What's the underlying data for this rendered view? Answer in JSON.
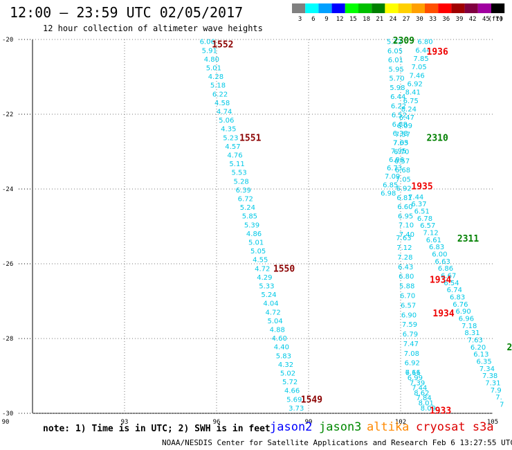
{
  "header": {
    "title": "12:00 – 23:59 UTC 02/05/2017",
    "subtitle": "12 hour collection of altimeter wave heights"
  },
  "legend": {
    "unit": "(ft)",
    "items": [
      {
        "label": "3",
        "color": "#808080"
      },
      {
        "label": "6",
        "color": "#00ffff"
      },
      {
        "label": "9",
        "color": "#00a0ff"
      },
      {
        "label": "12",
        "color": "#0000ff"
      },
      {
        "label": "15",
        "color": "#00ff00"
      },
      {
        "label": "18",
        "color": "#00c000"
      },
      {
        "label": "21",
        "color": "#008000"
      },
      {
        "label": "24",
        "color": "#ffff00"
      },
      {
        "label": "27",
        "color": "#ffd000"
      },
      {
        "label": "30",
        "color": "#ffa000"
      },
      {
        "label": "33",
        "color": "#ff5000"
      },
      {
        "label": "36",
        "color": "#ff0000"
      },
      {
        "label": "39",
        "color": "#a00000"
      },
      {
        "label": "42",
        "color": "#800040"
      },
      {
        "label": "45",
        "color": "#a000a0"
      },
      {
        "label": "70",
        "color": "#000000"
      }
    ]
  },
  "footer": {
    "note": "note: 1) Time is in UTC; 2) SWH is in feet",
    "satellites": [
      {
        "name": "jason2",
        "color": "#0000ff"
      },
      {
        "name": "jason3",
        "color": "#008800"
      },
      {
        "name": "altika",
        "color": "#ff8800"
      },
      {
        "name": "cryosat s3a",
        "color": "#dd0000"
      }
    ],
    "credit": "NOAA/NESDIS Center for Satellite Applications and Research   Feb  6 13:27:55 UTC 2017"
  },
  "chart_data": {
    "type": "scatter",
    "xlim": [
      90,
      105
    ],
    "ylim": [
      -30,
      -20
    ],
    "x_ticks": [
      "90",
      "93",
      "96",
      "99",
      "102",
      "105"
    ],
    "y_ticks": [
      "-20",
      "-22",
      "-24",
      "-26",
      "-28",
      "-30"
    ],
    "grid": true,
    "point_color": "#00c8e6",
    "tracks": [
      {
        "name": "track-a",
        "start": [
          95.7,
          -20.05
        ],
        "end": [
          98.6,
          -29.85
        ],
        "values": [
          "6.06",
          "5.91",
          "4.80",
          "5.01",
          "4.28",
          "5.18",
          "6.22",
          "4.58",
          "4.74",
          "5.06",
          "4.35",
          "5.23",
          "4.57",
          "4.76",
          "5.11",
          "5.53",
          "5.28",
          "6.39",
          "6.72",
          "5.24",
          "5.85",
          "5.39",
          "4.86",
          "5.01",
          "5.05",
          "4.55",
          "4.72",
          "4.29",
          "5.33",
          "5.24",
          "4.04",
          "4.72",
          "5.04",
          "4.88",
          "4.60",
          "4.40",
          "5.83",
          "4.32",
          "5.02",
          "5.72",
          "4.66",
          "5.69",
          "3.73"
        ]
      },
      {
        "name": "track-b",
        "start": [
          101.8,
          -20.05
        ],
        "end": [
          102.2,
          -25.2
        ],
        "values": [
          "5.72",
          "6.05",
          "6.01",
          "5.95",
          "5.70",
          "5.98",
          "6.44",
          "6.22",
          "6.52",
          "6.88",
          "6.38",
          "7.05",
          "6.70",
          "6.57",
          "6.68",
          "7.05",
          "6.92",
          "6.81",
          "6.60",
          "6.95",
          "7.10",
          "7.40"
        ]
      },
      {
        "name": "track-c",
        "start": [
          102.8,
          -20.05
        ],
        "end": [
          101.6,
          -24.1
        ],
        "values": [
          "6.80",
          "6.44",
          "7.85",
          "7.05",
          "7.46",
          "6.92",
          "8.41",
          "6.75",
          "8.24",
          "6.47",
          "6.09",
          "7.57",
          "7.63",
          "7.95",
          "6.96",
          "6.73",
          "7.09",
          "6.85",
          "6.98"
        ]
      },
      {
        "name": "track-d",
        "start": [
          102.1,
          -25.3
        ],
        "end": [
          102.4,
          -28.9
        ],
        "values": [
          "7.63",
          "7.12",
          "7.28",
          "6.43",
          "6.80",
          "5.88",
          "6.70",
          "6.57",
          "6.90",
          "7.59",
          "6.79",
          "7.47",
          "7.08",
          "6.92",
          "7.11"
        ]
      },
      {
        "name": "track-e",
        "start": [
          102.4,
          -28.9
        ],
        "end": [
          102.9,
          -29.85
        ],
        "values": [
          "6.66",
          "6.99",
          "7.39",
          "7.44",
          "8.62",
          "7.84",
          "8.01",
          "8.09"
        ]
      },
      {
        "name": "track-f",
        "start": [
          102.5,
          -24.2
        ],
        "end": [
          105.3,
          -29.75
        ],
        "values": [
          "7.44",
          "6.37",
          "6.51",
          "6.78",
          "6.57",
          "7.12",
          "6.61",
          "6.83",
          "6.00",
          "6.63",
          "6.86",
          "6.67",
          "6.54",
          "6.74",
          "6.83",
          "6.76",
          "6.90",
          "6.96",
          "7.18",
          "8.31",
          "7.63",
          "6.20",
          "6.13",
          "6.35",
          "7.34",
          "7.38",
          "7.31",
          "7.9",
          "7.",
          "7"
        ]
      }
    ],
    "pass_labels": [
      {
        "text": "1552",
        "x": 96.2,
        "y": -20.1,
        "color": "#8b0000"
      },
      {
        "text": "1551",
        "x": 97.1,
        "y": -22.6,
        "color": "#8b0000"
      },
      {
        "text": "1550",
        "x": 98.2,
        "y": -26.1,
        "color": "#8b0000"
      },
      {
        "text": "1549",
        "x": 99.1,
        "y": -29.6,
        "color": "#8b0000"
      },
      {
        "text": "2309",
        "x": 102.1,
        "y": -20.0,
        "color": "#008000"
      },
      {
        "text": "2310",
        "x": 103.2,
        "y": -22.6,
        "color": "#008000"
      },
      {
        "text": "2311",
        "x": 104.2,
        "y": -25.3,
        "color": "#008000"
      },
      {
        "text": "2",
        "x": 105.55,
        "y": -28.2,
        "color": "#008000"
      },
      {
        "text": "1936",
        "x": 103.2,
        "y": -20.3,
        "color": "#ee0000"
      },
      {
        "text": "1935",
        "x": 102.7,
        "y": -23.9,
        "color": "#ee0000"
      },
      {
        "text": "1934",
        "x": 103.3,
        "y": -26.4,
        "color": "#ee0000"
      },
      {
        "text": "1934",
        "x": 103.4,
        "y": -27.3,
        "color": "#ee0000"
      },
      {
        "text": "1933",
        "x": 103.3,
        "y": -29.9,
        "color": "#ee0000"
      }
    ]
  }
}
